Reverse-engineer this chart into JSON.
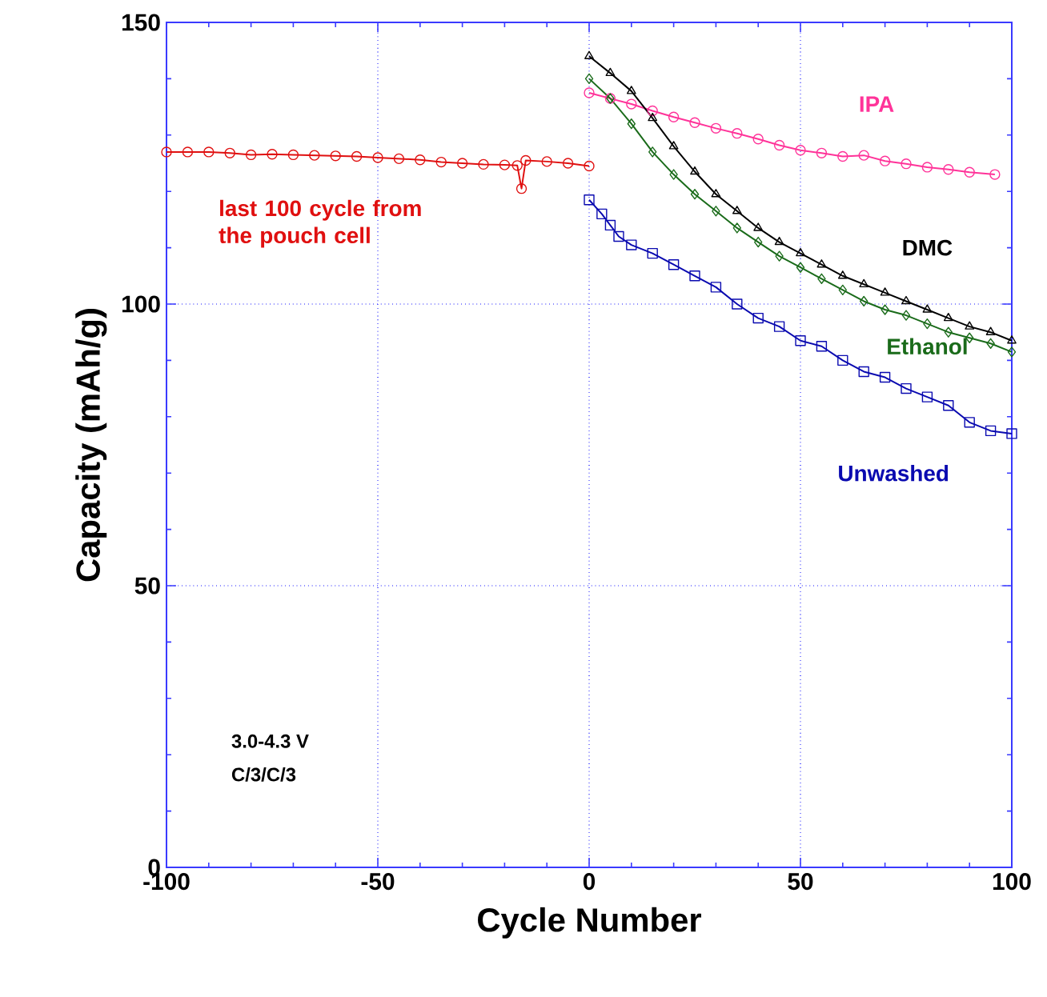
{
  "chart_data": {
    "type": "line",
    "xlabel": "Cycle Number",
    "ylabel": "Capacity (mAh/g)",
    "xlim": [
      -100,
      100
    ],
    "xticks": [
      -100,
      -50,
      0,
      50,
      100
    ],
    "ylim": [
      0,
      150
    ],
    "yticks": [
      0,
      50,
      100,
      150
    ],
    "grid": true,
    "line_style": "solid",
    "annotations": [
      "3.0-4.3 V",
      "C/3/C/3"
    ],
    "series": [
      {
        "name": "last 100 cycle from the pouch cell",
        "color": "#e01010",
        "marker": "circle",
        "x": [
          -100,
          -95,
          -90,
          -85,
          -80,
          -75,
          -70,
          -65,
          -60,
          -55,
          -50,
          -45,
          -40,
          -35,
          -30,
          -25,
          -20,
          -17,
          -16,
          -15,
          -10,
          -5,
          0
        ],
        "values": [
          127,
          127,
          127,
          126.8,
          126.5,
          126.6,
          126.5,
          126.4,
          126.3,
          126.2,
          126,
          125.8,
          125.6,
          125.2,
          125,
          124.8,
          124.7,
          124.6,
          120.5,
          125.5,
          125.3,
          125,
          124.5
        ]
      },
      {
        "name": "IPA",
        "color": "#ff3399",
        "marker": "circle",
        "x": [
          0,
          5,
          10,
          15,
          20,
          25,
          30,
          35,
          40,
          45,
          50,
          55,
          60,
          65,
          70,
          75,
          80,
          85,
          90,
          96
        ],
        "values": [
          137.5,
          136.5,
          135.5,
          134.3,
          133.2,
          132.2,
          131.2,
          130.3,
          129.3,
          128.2,
          127.3,
          126.8,
          126.2,
          126.4,
          125.4,
          124.9,
          124.3,
          123.9,
          123.4,
          123
        ]
      },
      {
        "name": "DMC",
        "color": "#000000",
        "marker": "triangle",
        "x": [
          0,
          5,
          10,
          15,
          20,
          25,
          30,
          35,
          40,
          45,
          50,
          55,
          60,
          65,
          70,
          75,
          80,
          85,
          90,
          95,
          100
        ],
        "values": [
          144,
          141,
          137.8,
          133,
          128,
          123.5,
          119.5,
          116.5,
          113.5,
          111,
          109,
          107,
          105,
          103.5,
          102,
          100.5,
          99,
          97.5,
          96,
          95,
          93.5
        ]
      },
      {
        "name": "Ethanol",
        "color": "#1a6b1a",
        "marker": "diamond",
        "x": [
          0,
          5,
          10,
          15,
          20,
          25,
          30,
          35,
          40,
          45,
          50,
          55,
          60,
          65,
          70,
          75,
          80,
          85,
          90,
          95,
          100
        ],
        "values": [
          140,
          136.5,
          132,
          127,
          123,
          119.5,
          116.5,
          113.5,
          111,
          108.5,
          106.5,
          104.5,
          102.5,
          100.5,
          99,
          98,
          96.5,
          95,
          94,
          93,
          91.5
        ]
      },
      {
        "name": "Unwashed",
        "color": "#0a0ab0",
        "marker": "square",
        "x": [
          0,
          3,
          5,
          7,
          10,
          15,
          20,
          25,
          30,
          35,
          40,
          45,
          50,
          55,
          60,
          65,
          70,
          75,
          80,
          85,
          90,
          95,
          100
        ],
        "values": [
          118.5,
          116,
          114,
          112,
          110.5,
          109,
          107,
          105,
          103,
          100,
          97.5,
          96,
          93.5,
          92.5,
          90,
          88,
          87,
          85,
          83.5,
          82,
          79,
          77.5,
          77
        ]
      }
    ]
  }
}
